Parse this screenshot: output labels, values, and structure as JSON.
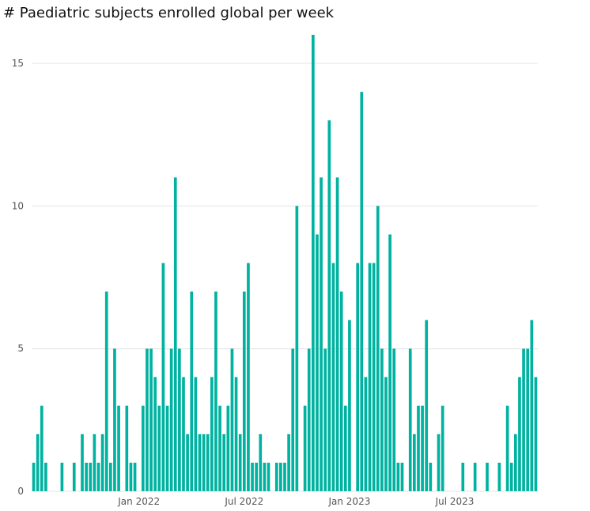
{
  "chart_data": {
    "type": "bar",
    "title": "# Paediatric subjects enrolled global per week",
    "xlabel": "",
    "ylabel": "",
    "ylim": [
      0,
      16
    ],
    "y_ticks": [
      0,
      5,
      10,
      15
    ],
    "x_tick_labels": [
      "Jan 2022",
      "Jul 2022",
      "Jan 2023",
      "Jul 2023"
    ],
    "x_tick_positions_week_index": [
      26,
      52,
      78,
      104
    ],
    "grid": true,
    "bar_color": "#00b2a0",
    "series": [
      {
        "values": [
          1,
          2,
          3,
          1,
          0,
          0,
          0,
          1,
          0,
          0,
          1,
          0,
          2,
          1,
          1,
          2,
          1,
          2,
          7,
          1,
          5,
          3,
          0,
          3,
          1,
          1,
          0,
          3,
          5,
          5,
          4,
          3,
          8,
          3,
          5,
          11,
          5,
          4,
          2,
          7,
          4,
          2,
          2,
          2,
          4,
          7,
          3,
          2,
          3,
          5,
          4,
          2,
          7,
          8,
          1,
          1,
          2,
          1,
          1,
          0,
          1,
          1,
          1,
          2,
          5,
          10,
          0,
          3,
          5,
          16,
          9,
          11,
          5,
          13,
          8,
          11,
          7,
          3,
          6,
          0,
          8,
          14,
          4,
          8,
          8,
          10,
          5,
          4,
          9,
          5,
          1,
          1,
          0,
          5,
          2,
          3,
          3,
          6,
          1,
          0,
          2,
          3,
          0,
          0,
          0,
          0,
          1,
          0,
          0,
          1,
          0,
          0,
          1,
          0,
          0,
          1,
          0,
          3,
          1,
          2,
          4,
          5,
          5,
          6,
          4
        ]
      }
    ]
  }
}
